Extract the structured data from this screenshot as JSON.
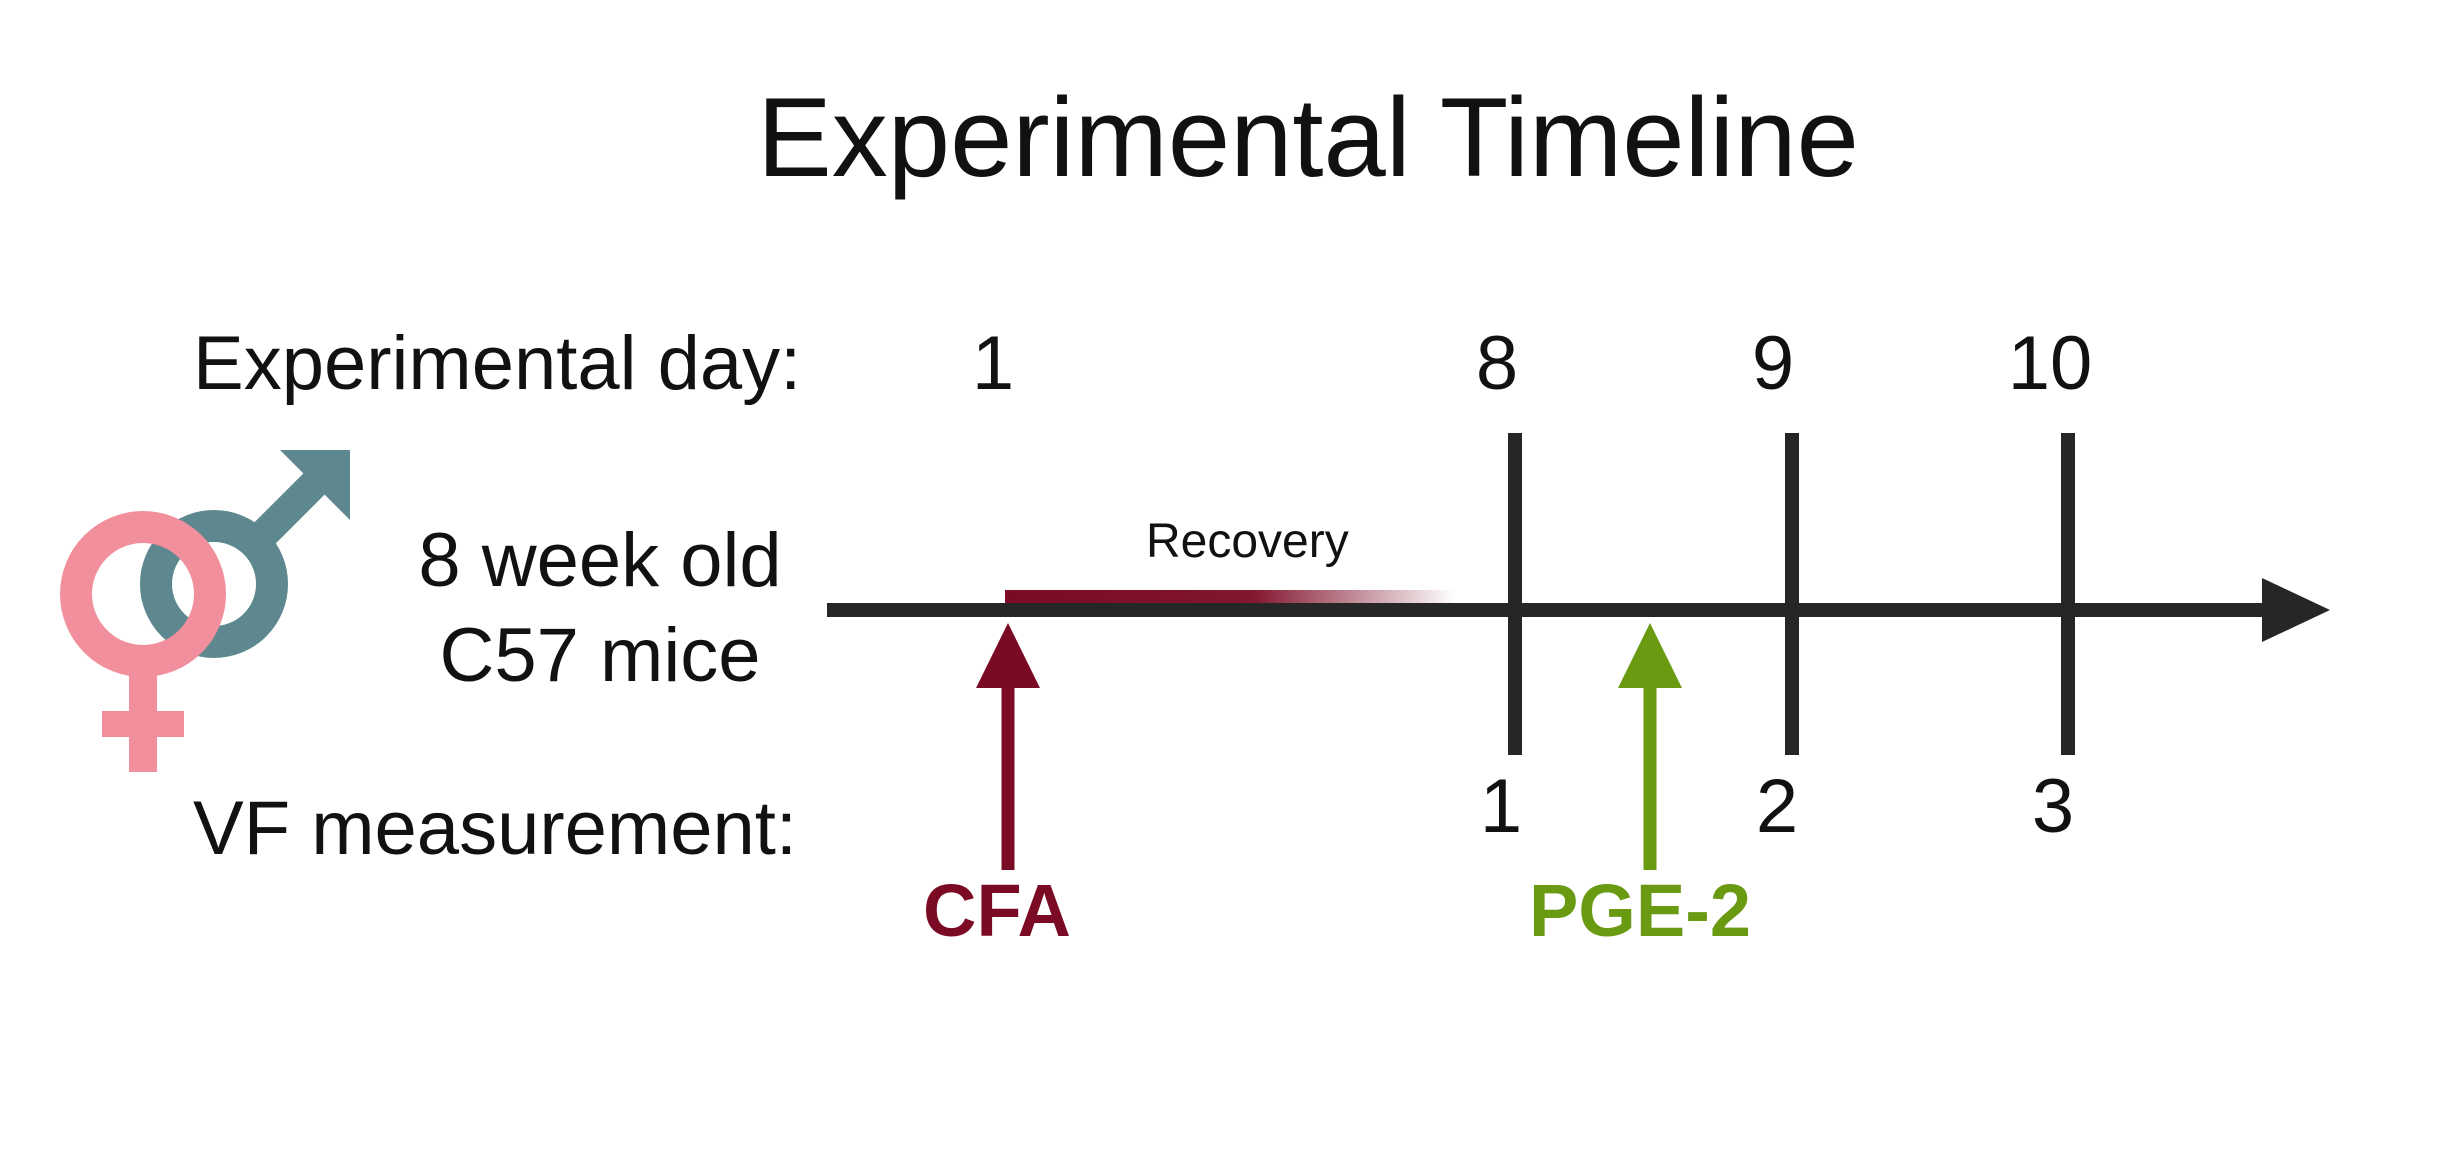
{
  "title": "Experimental Timeline",
  "labels": {
    "experimental_day": "Experimental day:",
    "vf_measurement": "VF measurement:",
    "subjects_line1": "8 week old",
    "subjects_line2": "C57 mice",
    "recovery": "Recovery"
  },
  "days": [
    "1",
    "8",
    "9",
    "10"
  ],
  "vf_measurements": [
    "1",
    "2",
    "3"
  ],
  "events": [
    {
      "label": "CFA",
      "color": "#7b0a24"
    },
    {
      "label": "PGE-2",
      "color": "#6a9a12"
    }
  ],
  "colors": {
    "timeline": "#262626",
    "recovery_bar": "#7b0a24",
    "female_symbol": "#f28f9c",
    "male_symbol": "#5e8890",
    "text": "#111111"
  },
  "icons": [
    "female-symbol-icon",
    "male-symbol-icon"
  ]
}
